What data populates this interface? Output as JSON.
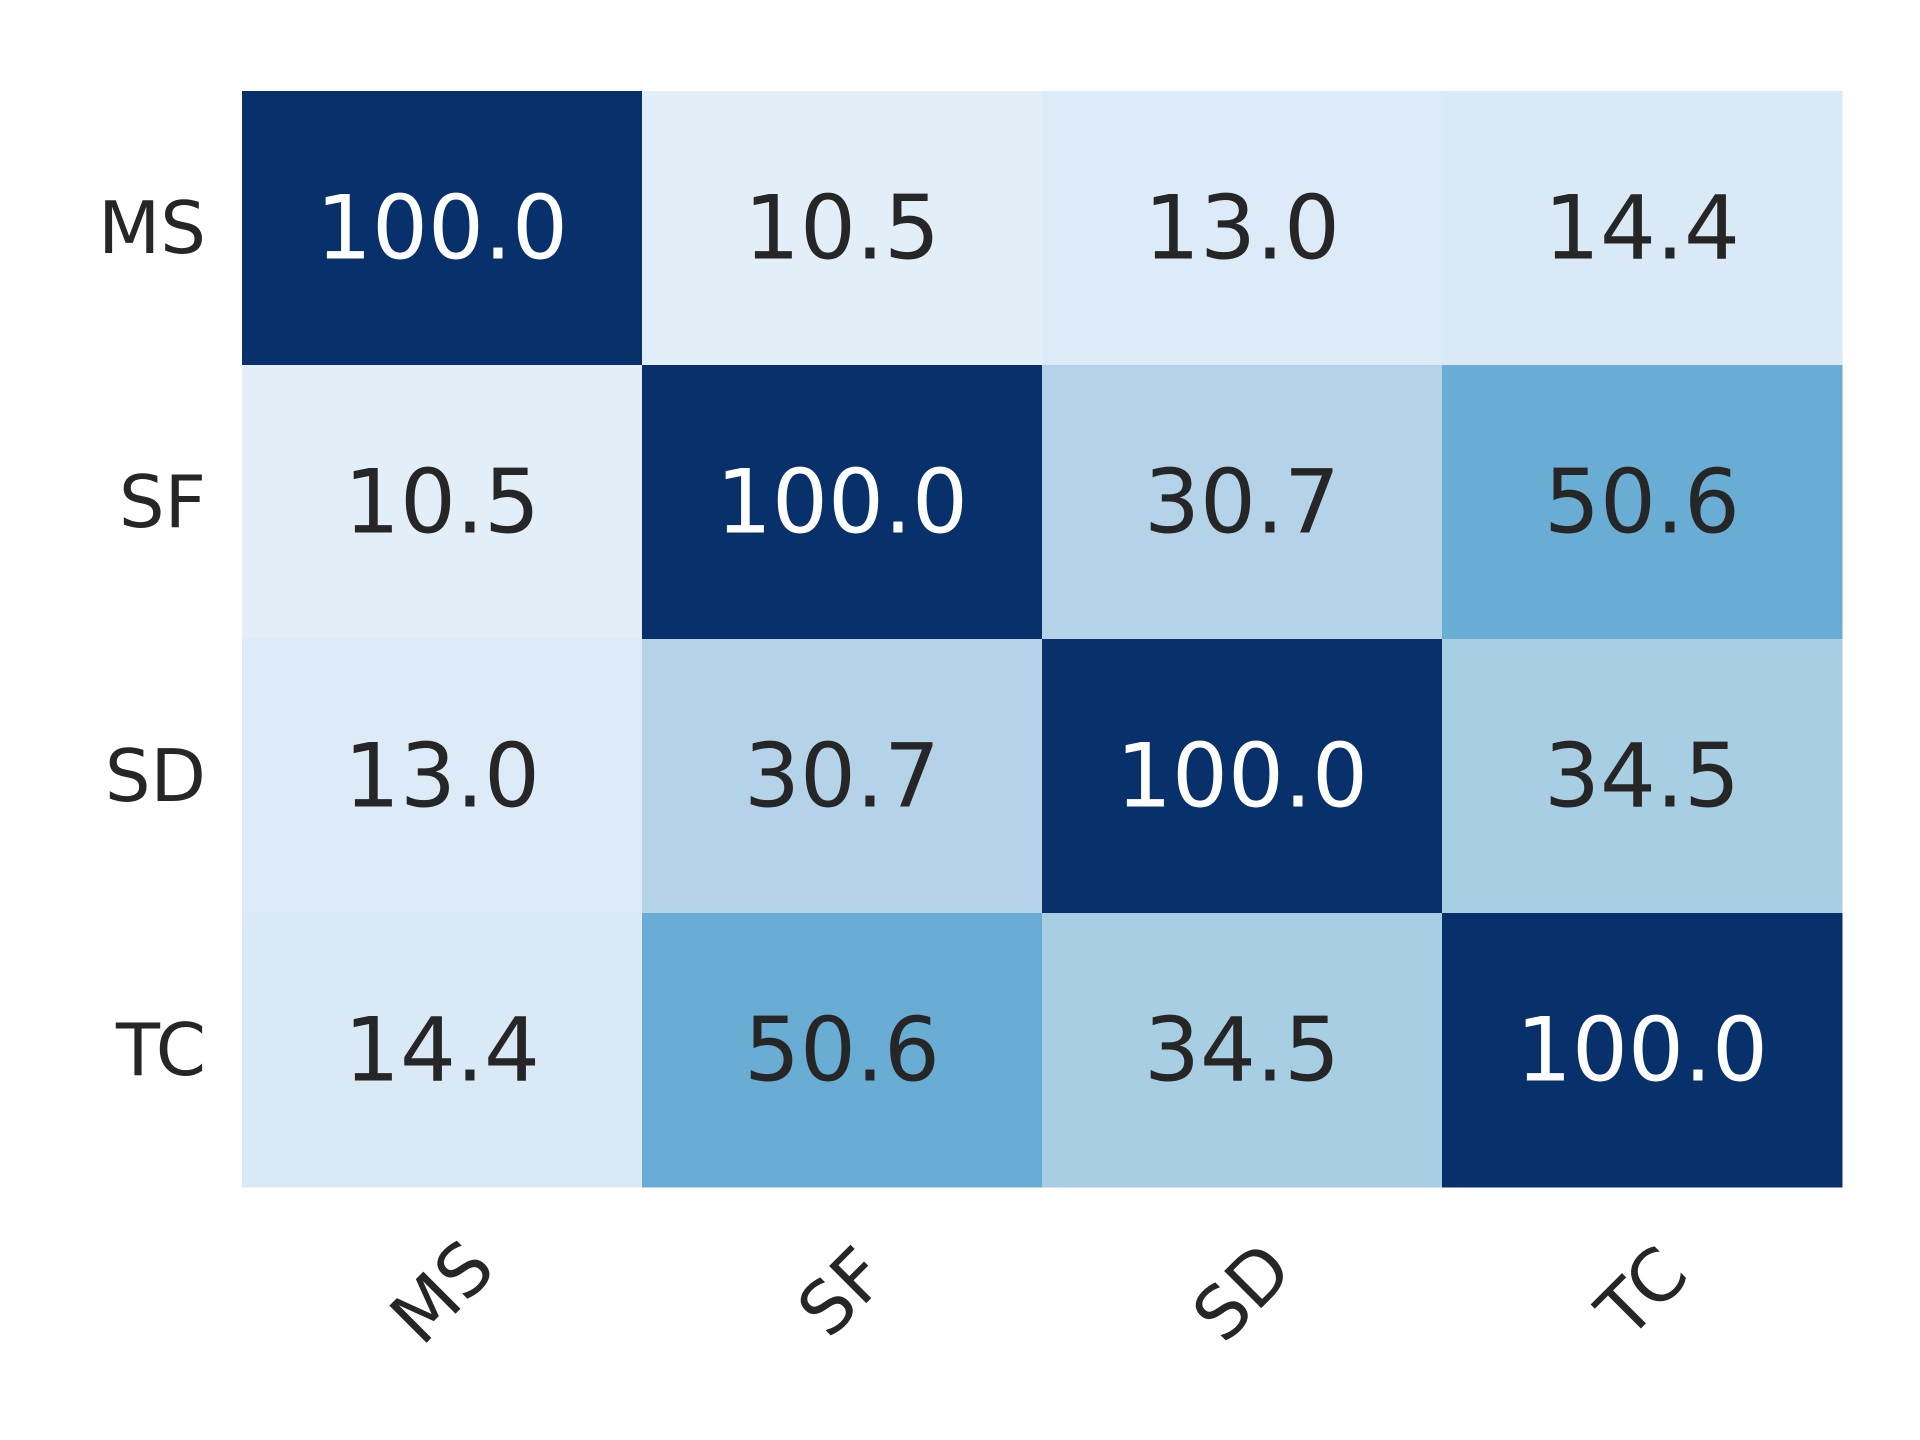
{
  "chart_data": {
    "type": "heatmap",
    "rows": [
      "MS",
      "SF",
      "SD",
      "TC"
    ],
    "columns": [
      "MS",
      "SF",
      "SD",
      "TC"
    ],
    "values": [
      [
        100.0,
        10.5,
        13.0,
        14.4
      ],
      [
        10.5,
        100.0,
        30.7,
        50.6
      ],
      [
        13.0,
        30.7,
        100.0,
        34.5
      ],
      [
        14.4,
        50.6,
        34.5,
        100.0
      ]
    ],
    "value_format": "one-decimal",
    "colormap": "Blues",
    "color_low": "#f7fbff",
    "color_high": "#08306b",
    "color_range": [
      0,
      100
    ],
    "text_color_dark": "#262626",
    "text_color_light": "#ffffff",
    "x_tick_rotation_deg": -45,
    "colorbar": false,
    "title": "",
    "xlabel": "",
    "ylabel": ""
  }
}
